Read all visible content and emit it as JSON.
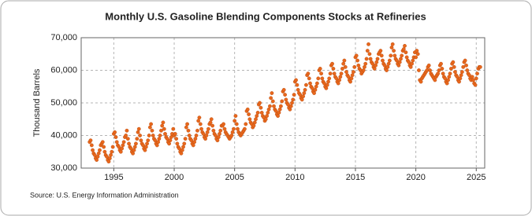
{
  "chart_data": {
    "type": "scatter",
    "title": "Monthly U.S. Gasoline Blending Components Stocks at Refineries",
    "y_label": "Thousand Barrels",
    "source": "Source: U.S. Energy Information Administration",
    "color": "#e8671c",
    "grid": true,
    "xlim": [
      1992.3,
      2025.7
    ],
    "xticks": [
      1995,
      2000,
      2005,
      2010,
      2015,
      2020,
      2025
    ],
    "ylim": [
      30000,
      70000
    ],
    "yticks": [
      {
        "value": 30000,
        "label": "30,000"
      },
      {
        "value": 40000,
        "label": "40,000"
      },
      {
        "value": 50000,
        "label": "50,000"
      },
      {
        "value": 60000,
        "label": "60,000"
      },
      {
        "value": 70000,
        "label": "70,000"
      }
    ],
    "series": [
      {
        "name": "Gasoline Blending Components Stocks",
        "x": [
          1993.0,
          1993.08,
          1993.17,
          1993.25,
          1993.33,
          1993.42,
          1993.5,
          1993.58,
          1993.67,
          1993.75,
          1993.83,
          1993.92,
          1994.0,
          1994.08,
          1994.17,
          1994.25,
          1994.33,
          1994.42,
          1994.5,
          1994.58,
          1994.67,
          1994.75,
          1994.83,
          1994.92,
          1995.0,
          1995.08,
          1995.17,
          1995.25,
          1995.33,
          1995.42,
          1995.5,
          1995.58,
          1995.67,
          1995.75,
          1995.83,
          1995.92,
          1996.0,
          1996.08,
          1996.17,
          1996.25,
          1996.33,
          1996.42,
          1996.5,
          1996.58,
          1996.67,
          1996.75,
          1996.83,
          1996.92,
          1997.0,
          1997.08,
          1997.17,
          1997.25,
          1997.33,
          1997.42,
          1997.5,
          1997.58,
          1997.67,
          1997.75,
          1997.83,
          1997.92,
          1998.0,
          1998.08,
          1998.17,
          1998.25,
          1998.33,
          1998.42,
          1998.5,
          1998.58,
          1998.67,
          1998.75,
          1998.83,
          1998.92,
          1999.0,
          1999.08,
          1999.17,
          1999.25,
          1999.33,
          1999.42,
          1999.5,
          1999.58,
          1999.67,
          1999.75,
          1999.83,
          1999.92,
          2000.0,
          2000.08,
          2000.17,
          2000.25,
          2000.33,
          2000.42,
          2000.5,
          2000.58,
          2000.67,
          2000.75,
          2000.83,
          2000.92,
          2001.0,
          2001.08,
          2001.17,
          2001.25,
          2001.33,
          2001.42,
          2001.5,
          2001.58,
          2001.67,
          2001.75,
          2001.83,
          2001.92,
          2002.0,
          2002.08,
          2002.17,
          2002.25,
          2002.33,
          2002.42,
          2002.5,
          2002.58,
          2002.67,
          2002.75,
          2002.83,
          2002.92,
          2003.0,
          2003.08,
          2003.17,
          2003.25,
          2003.33,
          2003.42,
          2003.5,
          2003.58,
          2003.67,
          2003.75,
          2003.83,
          2003.92,
          2004.0,
          2004.08,
          2004.17,
          2004.25,
          2004.33,
          2004.42,
          2004.5,
          2004.58,
          2004.67,
          2004.75,
          2004.83,
          2004.92,
          2005.0,
          2005.08,
          2005.17,
          2005.25,
          2005.33,
          2005.42,
          2005.5,
          2005.58,
          2005.67,
          2005.75,
          2005.83,
          2005.92,
          2006.0,
          2006.08,
          2006.17,
          2006.25,
          2006.33,
          2006.42,
          2006.5,
          2006.58,
          2006.67,
          2006.75,
          2006.83,
          2006.92,
          2007.0,
          2007.08,
          2007.17,
          2007.25,
          2007.33,
          2007.42,
          2007.5,
          2007.58,
          2007.67,
          2007.75,
          2007.83,
          2007.92,
          2008.0,
          2008.08,
          2008.17,
          2008.25,
          2008.33,
          2008.42,
          2008.5,
          2008.58,
          2008.67,
          2008.75,
          2008.83,
          2008.92,
          2009.0,
          2009.08,
          2009.17,
          2009.25,
          2009.33,
          2009.42,
          2009.5,
          2009.58,
          2009.67,
          2009.75,
          2009.83,
          2009.92,
          2010.0,
          2010.08,
          2010.17,
          2010.25,
          2010.33,
          2010.42,
          2010.5,
          2010.58,
          2010.67,
          2010.75,
          2010.83,
          2010.92,
          2011.0,
          2011.08,
          2011.17,
          2011.25,
          2011.33,
          2011.42,
          2011.5,
          2011.58,
          2011.67,
          2011.75,
          2011.83,
          2011.92,
          2012.0,
          2012.08,
          2012.17,
          2012.25,
          2012.33,
          2012.42,
          2012.5,
          2012.58,
          2012.67,
          2012.75,
          2012.83,
          2012.92,
          2013.0,
          2013.08,
          2013.17,
          2013.25,
          2013.33,
          2013.42,
          2013.5,
          2013.58,
          2013.67,
          2013.75,
          2013.83,
          2013.92,
          2014.0,
          2014.08,
          2014.17,
          2014.25,
          2014.33,
          2014.42,
          2014.5,
          2014.58,
          2014.67,
          2014.75,
          2014.83,
          2014.92,
          2015.0,
          2015.08,
          2015.17,
          2015.25,
          2015.33,
          2015.42,
          2015.5,
          2015.58,
          2015.67,
          2015.75,
          2015.83,
          2015.92,
          2016.0,
          2016.08,
          2016.17,
          2016.25,
          2016.33,
          2016.42,
          2016.5,
          2016.58,
          2016.67,
          2016.75,
          2016.83,
          2016.92,
          2017.0,
          2017.08,
          2017.17,
          2017.25,
          2017.33,
          2017.42,
          2017.5,
          2017.58,
          2017.67,
          2017.75,
          2017.83,
          2017.92,
          2018.0,
          2018.08,
          2018.17,
          2018.25,
          2018.33,
          2018.42,
          2018.5,
          2018.58,
          2018.67,
          2018.75,
          2018.83,
          2018.92,
          2019.0,
          2019.08,
          2019.17,
          2019.25,
          2019.33,
          2019.42,
          2019.5,
          2019.58,
          2019.67,
          2019.75,
          2019.83,
          2019.92,
          2020.0,
          2020.08,
          2020.17,
          2020.25,
          2020.33,
          2020.42,
          2020.5,
          2020.58,
          2020.67,
          2020.75,
          2020.83,
          2020.92,
          2021.0,
          2021.08,
          2021.17,
          2021.25,
          2021.33,
          2021.42,
          2021.5,
          2021.58,
          2021.67,
          2021.75,
          2021.83,
          2021.92,
          2022.0,
          2022.08,
          2022.17,
          2022.25,
          2022.33,
          2022.42,
          2022.5,
          2022.58,
          2022.67,
          2022.75,
          2022.83,
          2022.92,
          2023.0,
          2023.08,
          2023.17,
          2023.25,
          2023.33,
          2023.42,
          2023.5,
          2023.58,
          2023.67,
          2023.75,
          2023.83,
          2023.92,
          2024.0,
          2024.08,
          2024.17,
          2024.25,
          2024.33,
          2024.42,
          2024.5,
          2024.58,
          2024.67,
          2024.75,
          2024.83,
          2024.92,
          2025.0,
          2025.08,
          2025.17,
          2025.25,
          2025.33
        ],
        "values": [
          38000,
          38500,
          37000,
          35500,
          34500,
          34000,
          33000,
          32500,
          33500,
          34500,
          35500,
          37000,
          37500,
          38000,
          36500,
          35000,
          34000,
          33500,
          32500,
          32000,
          33000,
          34000,
          35000,
          36500,
          40500,
          41000,
          39500,
          38000,
          37000,
          36500,
          35500,
          35000,
          36000,
          37000,
          38000,
          39500,
          40000,
          41500,
          39000,
          37500,
          36500,
          36000,
          35000,
          34500,
          35500,
          36500,
          37500,
          39000,
          41000,
          42000,
          40000,
          38500,
          37500,
          37000,
          36000,
          35500,
          36500,
          37500,
          38500,
          40000,
          42500,
          43500,
          41500,
          40000,
          39000,
          38500,
          37500,
          37000,
          38000,
          39000,
          40000,
          41500,
          43000,
          44000,
          42000,
          40500,
          39500,
          39000,
          38000,
          37500,
          38500,
          39500,
          40500,
          42000,
          40000,
          40500,
          39000,
          37500,
          36500,
          36000,
          35000,
          34500,
          35500,
          36500,
          37500,
          39000,
          42500,
          43500,
          41500,
          40000,
          39000,
          38500,
          37500,
          37000,
          38000,
          39000,
          40000,
          41500,
          44500,
          45500,
          43500,
          42000,
          41000,
          40500,
          39500,
          39000,
          40000,
          41000,
          42000,
          43500,
          44000,
          45000,
          43000,
          41500,
          40500,
          40000,
          39000,
          38500,
          39500,
          40500,
          41500,
          43000,
          43000,
          43500,
          42000,
          41000,
          40500,
          40000,
          39500,
          39000,
          39500,
          40000,
          41000,
          42000,
          44500,
          46000,
          43500,
          42000,
          41000,
          40500,
          40000,
          40500,
          41000,
          41500,
          42000,
          43500,
          47500,
          48000,
          46500,
          45000,
          44000,
          43500,
          42500,
          43000,
          44000,
          45000,
          46000,
          47000,
          49500,
          50000,
          48500,
          47000,
          46000,
          45500,
          44500,
          45000,
          46000,
          47000,
          48000,
          49000,
          51500,
          53000,
          50500,
          49000,
          48000,
          47500,
          46500,
          46000,
          47000,
          48000,
          49000,
          50500,
          53500,
          54000,
          52500,
          51000,
          50000,
          49500,
          48500,
          48000,
          49000,
          50000,
          51000,
          52500,
          56500,
          57000,
          55500,
          54000,
          53000,
          52500,
          51500,
          51000,
          52000,
          53000,
          54000,
          55500,
          58500,
          59000,
          57500,
          56000,
          55000,
          54500,
          53500,
          53000,
          54000,
          55000,
          56000,
          57500,
          60000,
          60500,
          59000,
          57500,
          56500,
          56000,
          55000,
          54500,
          55500,
          56500,
          57500,
          59000,
          61500,
          62000,
          60500,
          59000,
          58000,
          57500,
          56500,
          56000,
          57000,
          58000,
          59000,
          60500,
          62000,
          63000,
          61000,
          59500,
          58500,
          58000,
          57000,
          56500,
          57500,
          58500,
          59500,
          61000,
          64000,
          64500,
          63000,
          61500,
          60500,
          60000,
          59000,
          59500,
          60000,
          61000,
          62000,
          63500,
          66000,
          68000,
          65000,
          63500,
          62500,
          62000,
          61000,
          60500,
          61500,
          62500,
          63500,
          65000,
          65500,
          66000,
          64500,
          63000,
          62000,
          61500,
          60500,
          60000,
          61000,
          62000,
          63000,
          64500,
          67000,
          68000,
          66000,
          64500,
          63500,
          63000,
          62000,
          61500,
          62500,
          63500,
          64500,
          66000,
          66500,
          67500,
          65500,
          64000,
          63000,
          62500,
          61500,
          61000,
          62000,
          63000,
          64000,
          65500,
          64000,
          66000,
          65000,
          60000,
          57000,
          56500,
          57500,
          58000,
          58500,
          59000,
          59500,
          60000,
          61000,
          61500,
          60000,
          59000,
          58500,
          58000,
          57500,
          57000,
          58000,
          58500,
          59000,
          60000,
          61500,
          62000,
          60500,
          59000,
          58000,
          57500,
          56500,
          56000,
          57000,
          58000,
          59000,
          60500,
          62000,
          62500,
          61000,
          59500,
          58500,
          58000,
          57000,
          56500,
          57500,
          58500,
          59500,
          61000,
          62500,
          63000,
          61500,
          60000,
          59000,
          58500,
          57500,
          57000,
          58000,
          57000,
          56000,
          55500,
          57500,
          59000,
          60500,
          61000,
          61000
        ]
      }
    ]
  }
}
